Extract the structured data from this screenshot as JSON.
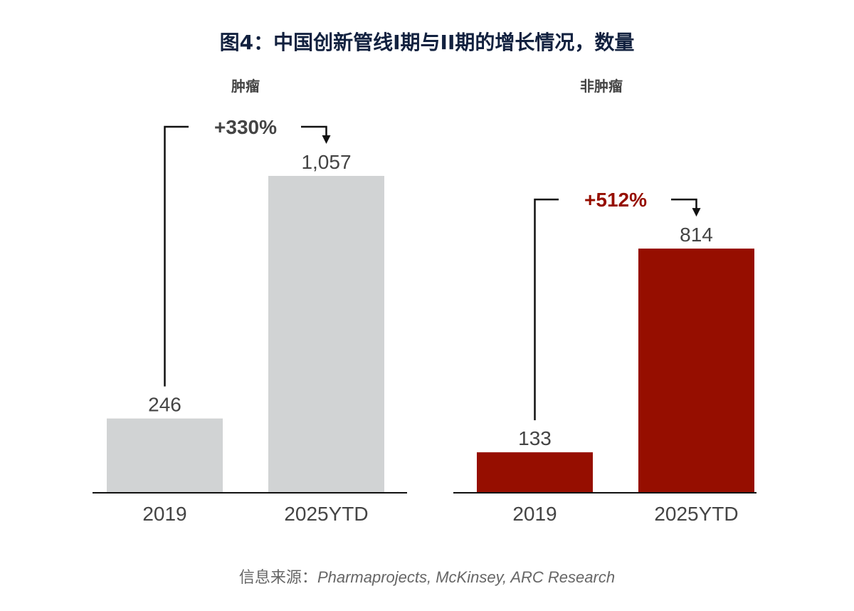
{
  "title": "图4：中国创新管线I期与II期的增长情况，数量",
  "colors": {
    "title": "#12213f",
    "grey_bar": "#d1d3d4",
    "red_bar": "#960e00",
    "text": "#444444",
    "axis": "#111111",
    "red_label": "#960e00"
  },
  "chart_data": [
    {
      "type": "bar",
      "title": "肿瘤",
      "categories": [
        "2019",
        "2025YTD"
      ],
      "values": [
        246,
        1057
      ],
      "value_labels": [
        "246",
        "1,057"
      ],
      "change_label": "+330%",
      "bar_color": "#d1d3d4",
      "change_color": "#444444"
    },
    {
      "type": "bar",
      "title": "非肿瘤",
      "categories": [
        "2019",
        "2025YTD"
      ],
      "values": [
        133,
        814
      ],
      "value_labels": [
        "133",
        "814"
      ],
      "change_label": "+512%",
      "bar_color": "#960e00",
      "change_color": "#960e00"
    }
  ],
  "source": {
    "label": "信息来源：",
    "text": "Pharmaprojects, McKinsey, ARC Research"
  }
}
